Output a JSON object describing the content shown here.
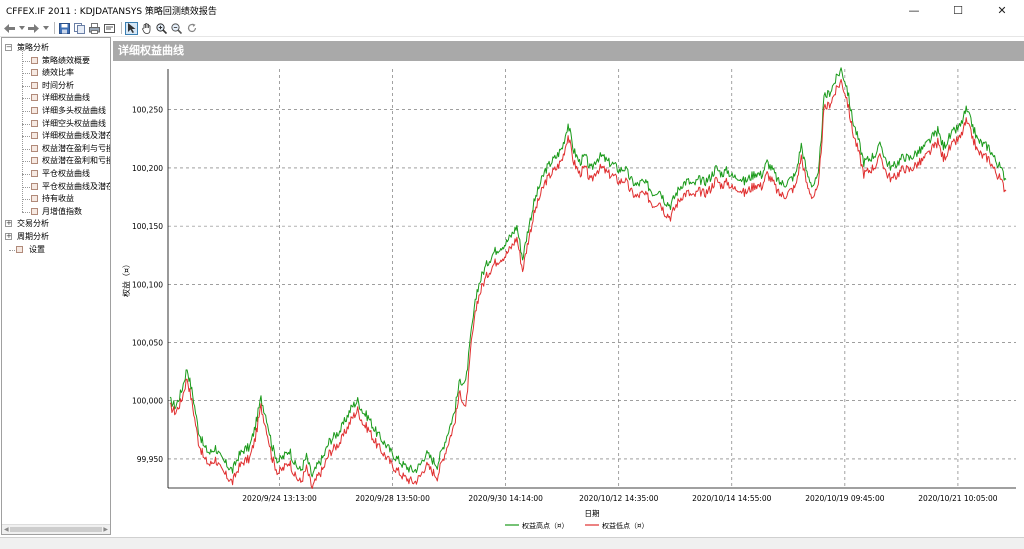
{
  "window": {
    "title": "CFFEX.IF 2011 : KDJDATANSYS 策略回测绩效报告",
    "minimize": "—",
    "maximize": "☐",
    "close": "✕"
  },
  "toolbar": {
    "icons": [
      "back-icon",
      "back-dropdown-icon",
      "forward-icon",
      "forward-dropdown-icon",
      "save-icon",
      "copy-icon",
      "print-icon",
      "print-preview-icon",
      "pointer-icon",
      "pan-hand-icon",
      "zoom-in-icon",
      "zoom-out-icon",
      "refresh-icon"
    ]
  },
  "sidebar": {
    "groups": [
      {
        "label": "策略分析",
        "expanded": true,
        "children": [
          "策略绩效概要",
          "绩效比率",
          "时间分析",
          "详细权益曲线",
          "详细多头权益曲线",
          "详细空头权益曲线",
          "详细权益曲线及潜在",
          "权益潜在盈利与亏损",
          "权益潜在盈利和亏损",
          "平仓权益曲线",
          "平仓权益曲线及潜在",
          "持有收益",
          "月增值指数"
        ]
      },
      {
        "label": "交易分析",
        "expanded": false,
        "children": []
      },
      {
        "label": "周期分析",
        "expanded": false,
        "children": []
      }
    ],
    "settings_label": "设置"
  },
  "panel": {
    "title": "详细权益曲线"
  },
  "chart_data": {
    "type": "line",
    "ylabel": "权益（¤）",
    "xlabel": "日期",
    "ylim": [
      99925,
      100285
    ],
    "yticks": [
      "99,950",
      "100,000",
      "100,050",
      "100,100",
      "100,150",
      "100,200",
      "100,250"
    ],
    "xticks": [
      "2020/9/24 13:13:00",
      "2020/9/28 13:50:00",
      "2020/9/30 14:14:00",
      "2020/10/12 14:35:00",
      "2020/10/14 14:55:00",
      "2020/10/19 09:45:00",
      "2020/10/21 10:05:00"
    ],
    "grid": true,
    "legend_position": "bottom-center",
    "series": [
      {
        "name": "权益高点（¤）",
        "color": "#1a9a1a",
        "values": [
          100000,
          99995,
          100008,
          100028,
          100005,
          99975,
          99960,
          99955,
          99960,
          99950,
          99945,
          99940,
          99952,
          99958,
          99960,
          99978,
          100002,
          99985,
          99960,
          99948,
          99952,
          99958,
          99945,
          99940,
          99952,
          99935,
          99945,
          99952,
          99965,
          99970,
          99975,
          99985,
          99995,
          100000,
          99990,
          99985,
          99975,
          99968,
          99962,
          99955,
          99950,
          99945,
          99942,
          99940,
          99945,
          99955,
          99950,
          99945,
          99960,
          99975,
          99990,
          100018,
          100015,
          100060,
          100095,
          100110,
          100120,
          100128,
          100132,
          100135,
          100142,
          100150,
          100122,
          100148,
          100170,
          100185,
          100198,
          100205,
          100210,
          100218,
          100238,
          100215,
          100205,
          100210,
          100198,
          100208,
          100210,
          100205,
          100203,
          100198,
          100200,
          100190,
          100185,
          100188,
          100185,
          100178,
          100182,
          100172,
          100168,
          100178,
          100186,
          100189,
          100185,
          100190,
          100188,
          100192,
          100200,
          100195,
          100198,
          100192,
          100193,
          100188,
          100192,
          100196,
          100194,
          100205,
          100198,
          100188,
          100186,
          100190,
          100194,
          100220,
          100195,
          100185,
          100192,
          100260,
          100265,
          100275,
          100285,
          100270,
          100242,
          100225,
          100205,
          100208,
          100212,
          100220,
          100205,
          100200,
          100205,
          100210,
          100208,
          100212,
          100215,
          100220,
          100226,
          100232,
          100218,
          100226,
          100232,
          100236,
          100250,
          100238,
          100224,
          100220,
          100218,
          100208,
          100200,
          100190
        ]
      },
      {
        "name": "权益低点（¤）",
        "color": "#e03030",
        "values": [
          99995,
          99990,
          100000,
          100020,
          99995,
          99965,
          99950,
          99945,
          99950,
          99940,
          99935,
          99930,
          99942,
          99948,
          99950,
          99968,
          99995,
          99975,
          99950,
          99938,
          99942,
          99948,
          99935,
          99930,
          99942,
          99925,
          99935,
          99942,
          99955,
          99960,
          99965,
          99975,
          99985,
          99992,
          99980,
          99975,
          99965,
          99958,
          99952,
          99945,
          99940,
          99935,
          99932,
          99930,
          99935,
          99945,
          99940,
          99935,
          99950,
          99965,
          99980,
          100008,
          99992,
          100050,
          100085,
          100100,
          100110,
          100118,
          100122,
          100125,
          100132,
          100140,
          100112,
          100138,
          100160,
          100175,
          100188,
          100195,
          100200,
          100208,
          100228,
          100205,
          100195,
          100200,
          100188,
          100198,
          100200,
          100195,
          100193,
          100188,
          100190,
          100180,
          100175,
          100178,
          100175,
          100168,
          100172,
          100162,
          100158,
          100168,
          100176,
          100179,
          100175,
          100180,
          100178,
          100182,
          100190,
          100185,
          100188,
          100182,
          100183,
          100178,
          100182,
          100186,
          100184,
          100195,
          100188,
          100178,
          100176,
          100180,
          100184,
          100210,
          100185,
          100175,
          100182,
          100250,
          100255,
          100265,
          100275,
          100260,
          100232,
          100215,
          100195,
          100198,
          100202,
          100210,
          100195,
          100190,
          100195,
          100200,
          100198,
          100202,
          100205,
          100210,
          100216,
          100222,
          100208,
          100216,
          100222,
          100226,
          100240,
          100228,
          100214,
          100210,
          100208,
          100198,
          100190,
          100180
        ]
      }
    ]
  },
  "statusbar": {
    "text": ""
  }
}
